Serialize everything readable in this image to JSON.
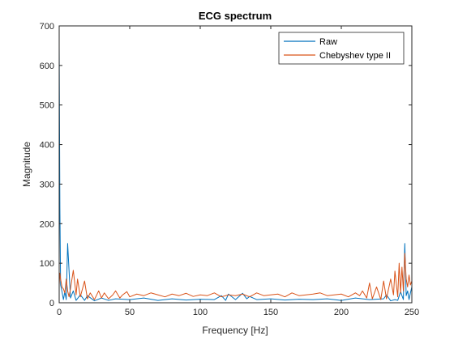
{
  "chart_data": {
    "type": "line",
    "title": "ECG spectrum",
    "xlabel": "Frequency [Hz]",
    "ylabel": "Magnitude",
    "xlim": [
      0,
      250
    ],
    "ylim": [
      0,
      700
    ],
    "xticks": [
      0,
      50,
      100,
      150,
      200,
      250
    ],
    "yticks": [
      0,
      100,
      200,
      300,
      400,
      500,
      600,
      700
    ],
    "grid": false,
    "legend_position": "top-right",
    "series": [
      {
        "name": "Raw",
        "color": "#0072BD",
        "x": [
          0,
          0.5,
          1,
          2,
          3,
          4,
          5,
          6,
          8,
          10,
          12,
          15,
          18,
          20,
          25,
          30,
          35,
          40,
          50,
          60,
          70,
          80,
          90,
          100,
          110,
          115,
          118,
          120,
          125,
          130,
          133,
          135,
          140,
          150,
          160,
          170,
          180,
          190,
          200,
          210,
          220,
          230,
          232,
          235,
          238,
          240,
          242,
          244,
          245,
          246,
          247,
          248,
          249,
          250
        ],
        "y": [
          650,
          240,
          45,
          28,
          8,
          28,
          8,
          150,
          12,
          30,
          6,
          20,
          6,
          18,
          5,
          12,
          6,
          10,
          8,
          12,
          6,
          10,
          7,
          9,
          8,
          18,
          6,
          22,
          8,
          24,
          10,
          16,
          8,
          10,
          7,
          9,
          8,
          10,
          6,
          12,
          8,
          10,
          20,
          5,
          8,
          6,
          28,
          8,
          150,
          18,
          30,
          8,
          25,
          40
        ]
      },
      {
        "name": "Chebyshev type II",
        "color": "#D95319",
        "x": [
          0,
          0.5,
          1,
          2,
          3,
          4,
          5,
          6,
          7,
          8,
          10,
          12,
          13,
          15,
          18,
          20,
          22,
          25,
          28,
          30,
          32,
          35,
          38,
          40,
          43,
          45,
          48,
          50,
          55,
          60,
          65,
          70,
          75,
          80,
          85,
          90,
          95,
          100,
          105,
          110,
          115,
          120,
          125,
          130,
          135,
          140,
          145,
          150,
          155,
          160,
          165,
          170,
          175,
          180,
          185,
          190,
          195,
          200,
          205,
          210,
          213,
          215,
          218,
          220,
          222,
          225,
          228,
          230,
          232,
          235,
          237,
          238,
          240,
          241,
          242,
          243,
          244,
          245,
          246,
          247,
          248,
          249,
          250
        ],
        "y": [
          45,
          75,
          60,
          40,
          35,
          25,
          60,
          30,
          15,
          35,
          82,
          20,
          60,
          15,
          55,
          10,
          25,
          8,
          30,
          12,
          25,
          10,
          20,
          30,
          12,
          20,
          28,
          15,
          22,
          18,
          25,
          20,
          15,
          22,
          18,
          24,
          16,
          20,
          18,
          25,
          15,
          20,
          18,
          22,
          15,
          25,
          18,
          20,
          22,
          15,
          25,
          18,
          20,
          22,
          25,
          18,
          20,
          22,
          15,
          25,
          18,
          30,
          12,
          50,
          10,
          40,
          8,
          55,
          10,
          60,
          20,
          80,
          15,
          100,
          25,
          90,
          30,
          125,
          60,
          40,
          70,
          45,
          55
        ]
      }
    ]
  }
}
